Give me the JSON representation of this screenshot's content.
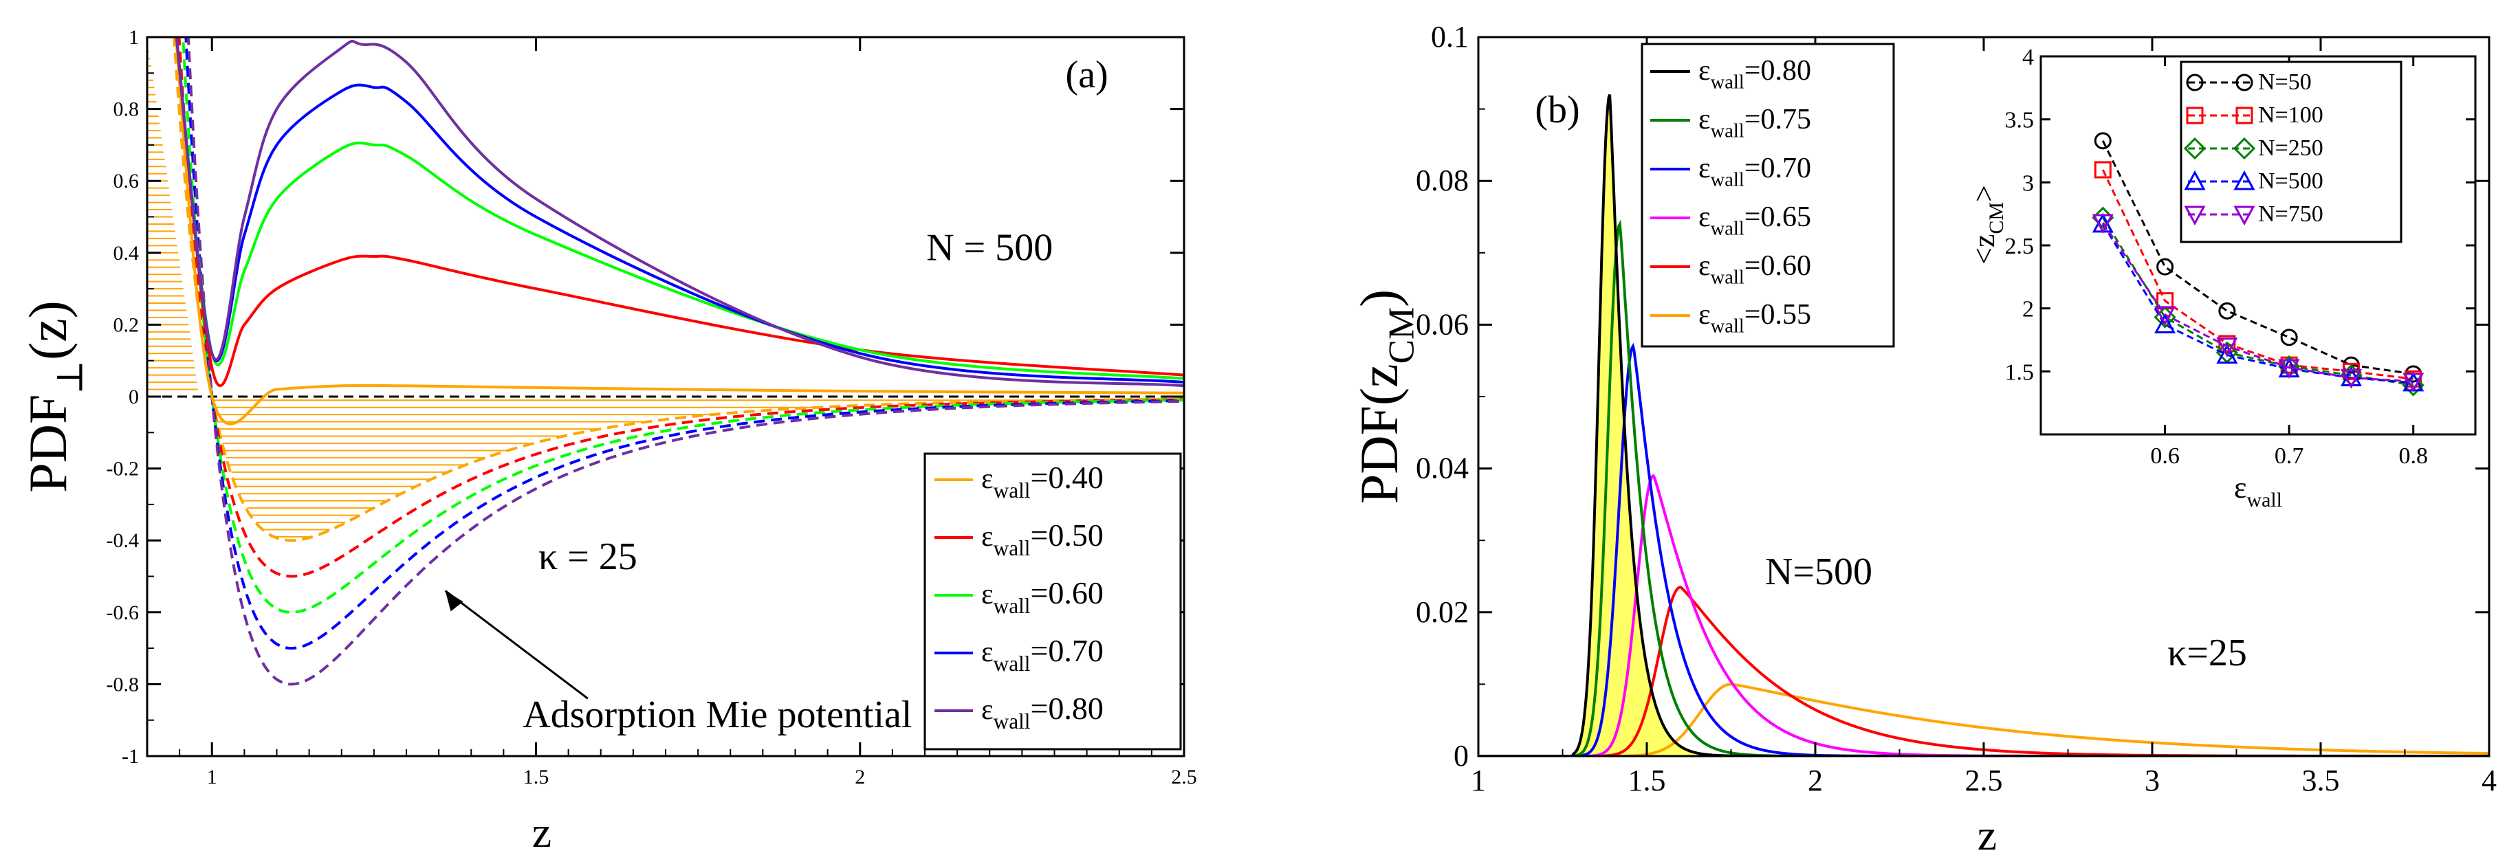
{
  "chart_data": [
    {
      "panel": "(a)",
      "type": "line",
      "xlabel": "z",
      "ylabel_main": "PDF",
      "ylabel_sub": "⊥",
      "ylabel_tail": "(z)",
      "xlim": [
        0.9,
        2.5
      ],
      "ylim": [
        -1,
        1
      ],
      "xticks": [
        1,
        1.5,
        2,
        2.5
      ],
      "yticks": [
        -1,
        -0.8,
        -0.6,
        -0.4,
        -0.2,
        0,
        0.2,
        0.4,
        0.6,
        0.8,
        1
      ],
      "annotations": [
        {
          "text": "N = 500"
        },
        {
          "text": "κ = 25"
        },
        {
          "text": "Adsorption Mie potential"
        }
      ],
      "legend_loc": "lower-right",
      "series": [
        {
          "name": "ε",
          "sub": "wall",
          "value": "=0.40",
          "color": "#FFA500",
          "pdf": {
            "x": [
              1.0,
              1.1,
              1.2,
              1.3,
              1.5,
              2.0,
              2.5
            ],
            "y": [
              0.0,
              0.02,
              0.03,
              0.03,
              0.025,
              0.015,
              0.01
            ]
          },
          "potential_min": -0.4
        },
        {
          "name": "ε",
          "sub": "wall",
          "value": "=0.50",
          "color": "#FF0000",
          "pdf": {
            "x": [
              1.0,
              1.05,
              1.1,
              1.2,
              1.25,
              1.3,
              1.5,
              2.0,
              2.5
            ],
            "y": [
              0.08,
              0.2,
              0.3,
              0.38,
              0.39,
              0.38,
              0.3,
              0.13,
              0.06
            ]
          },
          "potential_min": -0.5
        },
        {
          "name": "ε",
          "sub": "wall",
          "value": "=0.60",
          "color": "#00FF00",
          "pdf": {
            "x": [
              1.0,
              1.05,
              1.1,
              1.2,
              1.25,
              1.3,
              1.5,
              2.0,
              2.5
            ],
            "y": [
              0.12,
              0.35,
              0.55,
              0.69,
              0.7,
              0.67,
              0.45,
              0.13,
              0.05
            ]
          },
          "potential_min": -0.6
        },
        {
          "name": "ε",
          "sub": "wall",
          "value": "=0.70",
          "color": "#0000FF",
          "pdf": {
            "x": [
              1.0,
              1.05,
              1.1,
              1.2,
              1.25,
              1.3,
              1.5,
              2.0,
              2.5
            ],
            "y": [
              0.12,
              0.45,
              0.7,
              0.85,
              0.86,
              0.82,
              0.5,
              0.12,
              0.04
            ]
          },
          "potential_min": -0.7
        },
        {
          "name": "ε",
          "sub": "wall",
          "value": "=0.80",
          "color": "#7030A0",
          "pdf": {
            "x": [
              1.0,
              1.05,
              1.1,
              1.2,
              1.23,
              1.3,
              1.5,
              2.0,
              2.5
            ],
            "y": [
              0.12,
              0.5,
              0.8,
              0.97,
              0.98,
              0.93,
              0.55,
              0.11,
              0.03
            ]
          },
          "potential_min": -0.8
        }
      ]
    },
    {
      "panel": "(b)",
      "type": "line",
      "xlabel": "z",
      "ylabel_main": "PDF(z",
      "ylabel_sub": "CM",
      "ylabel_tail": ")",
      "xlim": [
        1,
        4
      ],
      "ylim": [
        0,
        0.1
      ],
      "xticks": [
        1,
        1.5,
        2,
        2.5,
        3,
        3.5,
        4
      ],
      "yticks": [
        0,
        0.02,
        0.04,
        0.06,
        0.08,
        0.1
      ],
      "annotations": [
        {
          "text": "N=500"
        },
        {
          "text": "κ=25"
        }
      ],
      "legend_loc": "top-left",
      "series": [
        {
          "name": "ε",
          "sub": "wall",
          "value": "=0.80",
          "color": "#000000",
          "peak_x": 1.39,
          "peak_y": 0.092,
          "width_left": 0.045,
          "width_right": 0.06
        },
        {
          "name": "ε",
          "sub": "wall",
          "value": "=0.75",
          "color": "#008000",
          "peak_x": 1.42,
          "peak_y": 0.074,
          "width_left": 0.05,
          "width_right": 0.08
        },
        {
          "name": "ε",
          "sub": "wall",
          "value": "=0.70",
          "color": "#0000FF",
          "peak_x": 1.46,
          "peak_y": 0.057,
          "width_left": 0.06,
          "width_right": 0.11
        },
        {
          "name": "ε",
          "sub": "wall",
          "value": "=0.65",
          "color": "#FF00FF",
          "peak_x": 1.52,
          "peak_y": 0.039,
          "width_left": 0.07,
          "width_right": 0.18
        },
        {
          "name": "ε",
          "sub": "wall",
          "value": "=0.60",
          "color": "#FF0000",
          "peak_x": 1.6,
          "peak_y": 0.0235,
          "width_left": 0.09,
          "width_right": 0.32
        },
        {
          "name": "ε",
          "sub": "wall",
          "value": "=0.55",
          "color": "#FFA500",
          "peak_x": 1.75,
          "peak_y": 0.01,
          "width_left": 0.13,
          "width_right": 0.8
        }
      ],
      "inset": {
        "type": "line",
        "xlabel_main": "ε",
        "xlabel_sub": "wall",
        "ylabel_main": "<z",
        "ylabel_sub": "CM",
        "ylabel_tail": ">",
        "xlim": [
          0.5,
          0.85
        ],
        "ylim": [
          1,
          4
        ],
        "xticks": [
          0.6,
          0.7,
          0.8
        ],
        "yticks": [
          1.5,
          2,
          2.5,
          3,
          3.5,
          4
        ],
        "x": [
          0.55,
          0.6,
          0.65,
          0.7,
          0.75,
          0.8
        ],
        "series": [
          {
            "name": "N=50",
            "color": "#000000",
            "marker": "circle",
            "values": [
              3.33,
              2.33,
              1.98,
              1.77,
              1.55,
              1.48
            ]
          },
          {
            "name": "N=100",
            "color": "#FF0000",
            "marker": "square",
            "values": [
              3.1,
              2.06,
              1.72,
              1.55,
              1.5,
              1.44
            ]
          },
          {
            "name": "N=250",
            "color": "#008000",
            "marker": "diamond",
            "values": [
              2.72,
              1.93,
              1.65,
              1.54,
              1.47,
              1.39
            ]
          },
          {
            "name": "N=500",
            "color": "#0000FF",
            "marker": "triangle-up",
            "values": [
              2.67,
              1.87,
              1.63,
              1.52,
              1.45,
              1.41
            ]
          },
          {
            "name": "N=750",
            "color": "#9400D3",
            "marker": "triangle-down",
            "values": [
              2.68,
              1.95,
              1.7,
              1.53,
              1.45,
              1.42
            ]
          }
        ]
      }
    }
  ]
}
